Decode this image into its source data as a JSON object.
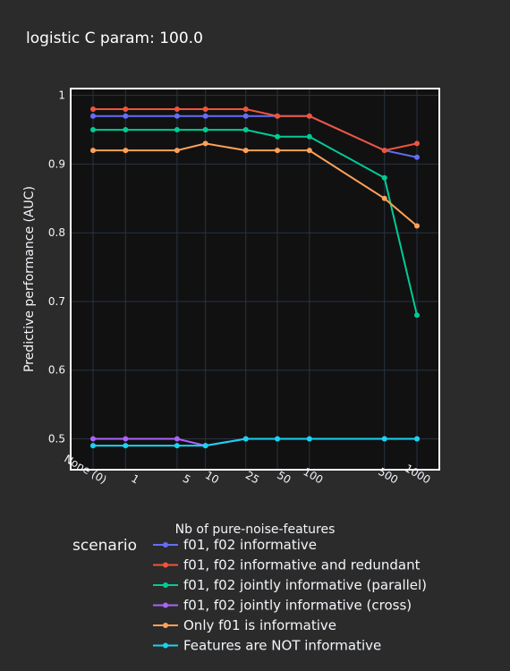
{
  "chart_data": {
    "type": "line",
    "title": "logistic C param: 100.0",
    "xlabel": "Nb of pure-noise-features",
    "ylabel": "Predictive performance (AUC)",
    "x": [
      0,
      1,
      5,
      10,
      25,
      50,
      100,
      500,
      1000
    ],
    "x_tick_labels": [
      "None (0)",
      "1",
      "5",
      "10",
      "25",
      "50",
      "100",
      "500",
      "1000"
    ],
    "x_scale": "log(x+1)",
    "y_ticks": [
      0.5,
      0.6,
      0.7,
      0.8,
      0.9,
      1
    ],
    "y_tick_labels": [
      "0.5",
      "0.6",
      "0.7",
      "0.8",
      "0.9",
      "1"
    ],
    "ylim": [
      0.455,
      1.01
    ],
    "grid": true,
    "legend_title": "scenario",
    "legend_position": "bottom",
    "series": [
      {
        "name": "f01, f02 informative",
        "color": "#636efa",
        "values": [
          0.97,
          0.97,
          0.97,
          0.97,
          0.97,
          0.97,
          0.97,
          0.92,
          0.91
        ]
      },
      {
        "name": "f01, f02 informative and redundant",
        "color": "#ef553b",
        "values": [
          0.98,
          0.98,
          0.98,
          0.98,
          0.98,
          0.97,
          0.97,
          0.92,
          0.93
        ]
      },
      {
        "name": "f01, f02 jointly informative (parallel)",
        "color": "#00cc96",
        "values": [
          0.95,
          0.95,
          0.95,
          0.95,
          0.95,
          0.94,
          0.94,
          0.88,
          0.68
        ]
      },
      {
        "name": "f01, f02 jointly informative (cross)",
        "color": "#ab63fa",
        "values": [
          0.5,
          0.5,
          0.5,
          0.49,
          0.5,
          0.5,
          0.5,
          0.5,
          0.5
        ]
      },
      {
        "name": "Only f01 is informative",
        "color": "#ffa15a",
        "values": [
          0.92,
          0.92,
          0.92,
          0.93,
          0.92,
          0.92,
          0.92,
          0.85,
          0.81
        ]
      },
      {
        "name": "Features are NOT informative",
        "color": "#19d3f3",
        "values": [
          0.49,
          0.49,
          0.49,
          0.49,
          0.5,
          0.5,
          0.5,
          0.5,
          0.5
        ]
      }
    ]
  }
}
